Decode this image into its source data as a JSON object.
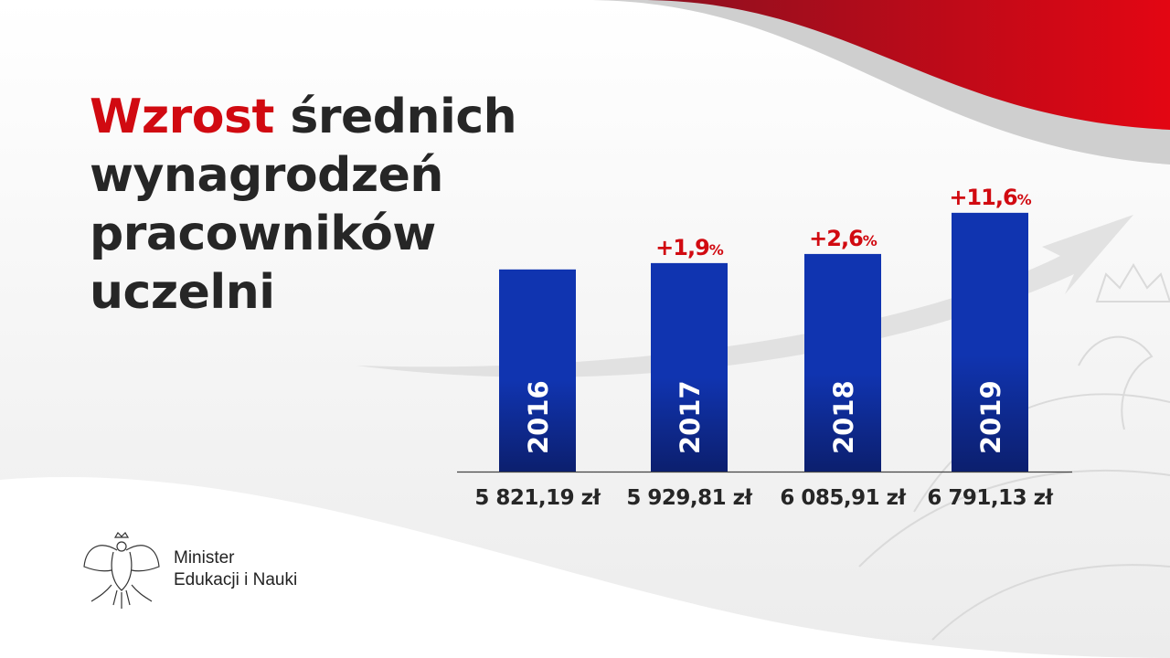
{
  "title": {
    "highlight": "Wzrost",
    "line1_rest": " średnich",
    "line2": "wynagrodzeń",
    "line3": "pracowników",
    "line4": "uczelni"
  },
  "footer": {
    "line1": "Minister",
    "line2": "Edukacji i Nauki",
    "emblem": "polish-eagle-emblem"
  },
  "colors": {
    "bar": "#1034b0",
    "bar_bottom": "#0c1f6e",
    "growth_label": "#d10a11",
    "title_accent": "#d10a11",
    "text": "#262626"
  },
  "chart_data": {
    "type": "bar",
    "categories": [
      "2016",
      "2017",
      "2018",
      "2019"
    ],
    "values": [
      5821.19,
      5929.81,
      6085.91,
      6791.13
    ],
    "value_labels": [
      "5 821,19 zł",
      "5 929,81 zł",
      "6 085,91 zł",
      "6 791,13 zł"
    ],
    "growth_labels": [
      "",
      "+1,9",
      "+2,6",
      "+11,6"
    ],
    "growth_unit": "%",
    "ylim": [
      2360,
      7000
    ],
    "grid": false,
    "title": "",
    "xlabel": "",
    "ylabel": ""
  }
}
